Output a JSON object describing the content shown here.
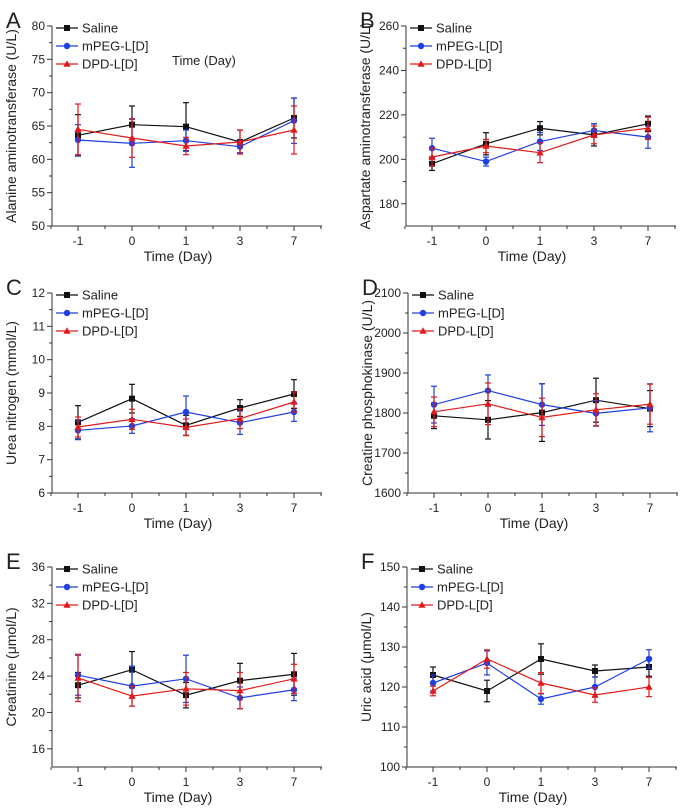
{
  "series_names": [
    "Saline",
    "mPEG-L[D]",
    "DPD-L[D]"
  ],
  "colors": {
    "Saline": "#111111",
    "mPEG-L[D]": "#1f3fe0",
    "DPD-L[D]": "#e01a1a"
  },
  "chart_data": [
    {
      "panel": "A",
      "type": "line",
      "xlabel": "Time (Day)",
      "ylabel": "Alanine aminotransferase (U/L)",
      "categories": [
        "-1",
        "0",
        "1",
        "3",
        "7"
      ],
      "ylim": [
        50,
        80
      ],
      "yticks": [
        50,
        55,
        60,
        65,
        70,
        75,
        80
      ],
      "annotation": "Time (Day)",
      "legend": "top-left",
      "series": [
        {
          "name": "Saline",
          "values": [
            63.6,
            65.2,
            64.9,
            62.6,
            66.2
          ],
          "errors": [
            3.1,
            2.8,
            3.6,
            1.8,
            3.0
          ]
        },
        {
          "name": "mPEG-L[D]",
          "values": [
            62.9,
            62.4,
            62.8,
            61.9,
            65.8
          ],
          "errors": [
            2.3,
            3.6,
            1.6,
            0.9,
            3.4
          ]
        },
        {
          "name": "DPD-L[D]",
          "values": [
            64.5,
            63.2,
            62.0,
            62.6,
            64.4
          ],
          "errors": [
            3.8,
            2.9,
            1.3,
            1.8,
            3.6
          ]
        }
      ]
    },
    {
      "panel": "B",
      "type": "line",
      "xlabel": "Time (Day)",
      "ylabel": "Aspartate aminotransferase (U/L)",
      "categories": [
        "-1",
        "0",
        "1",
        "3",
        "7"
      ],
      "ylim": [
        170,
        260
      ],
      "yticks": [
        180,
        200,
        220,
        240,
        260
      ],
      "legend": "top-left",
      "series": [
        {
          "name": "Saline",
          "values": [
            198,
            207,
            214,
            211,
            216
          ],
          "errors": [
            3,
            5,
            3,
            5,
            3.5
          ]
        },
        {
          "name": "mPEG-L[D]",
          "values": [
            205,
            199,
            208,
            213,
            210
          ],
          "errors": [
            4.5,
            2,
            4,
            3,
            5
          ]
        },
        {
          "name": "DPD-L[D]",
          "values": [
            201,
            206,
            203,
            211,
            214
          ],
          "errors": [
            4,
            3,
            4.5,
            4,
            5
          ]
        }
      ]
    },
    {
      "panel": "C",
      "type": "line",
      "xlabel": "Time (Day)",
      "ylabel": "Urea nitrogen (mmol/L)",
      "categories": [
        "-1",
        "0",
        "1",
        "3",
        "7"
      ],
      "ylim": [
        6,
        12
      ],
      "yticks": [
        6,
        7,
        8,
        9,
        10,
        11,
        12
      ],
      "legend": "top-left",
      "series": [
        {
          "name": "Saline",
          "values": [
            8.12,
            8.83,
            8.03,
            8.55,
            8.97
          ],
          "errors": [
            0.5,
            0.43,
            0.3,
            0.25,
            0.43
          ]
        },
        {
          "name": "mPEG-L[D]",
          "values": [
            7.88,
            8.01,
            8.43,
            8.11,
            8.43
          ],
          "errors": [
            0.28,
            0.22,
            0.48,
            0.35,
            0.28
          ]
        },
        {
          "name": "DPD-L[D]",
          "values": [
            7.98,
            8.21,
            7.97,
            8.23,
            8.73
          ],
          "errors": [
            0.3,
            0.3,
            0.25,
            0.3,
            0.3
          ]
        }
      ]
    },
    {
      "panel": "D",
      "type": "line",
      "xlabel": "Time (Day)",
      "ylabel": "Creatine phosphokinase (U/L)",
      "categories": [
        "-1",
        "0",
        "1",
        "3",
        "7"
      ],
      "ylim": [
        1600,
        2100
      ],
      "yticks": [
        1600,
        1700,
        1800,
        1900,
        2000,
        2100
      ],
      "legend": "top-left",
      "series": [
        {
          "name": "Saline",
          "values": [
            1793,
            1783,
            1801,
            1832,
            1811
          ],
          "errors": [
            32,
            48,
            72,
            55,
            45
          ]
        },
        {
          "name": "mPEG-L[D]",
          "values": [
            1821,
            1856,
            1821,
            1799,
            1813
          ],
          "errors": [
            46,
            39,
            52,
            32,
            60
          ]
        },
        {
          "name": "DPD-L[D]",
          "values": [
            1803,
            1823,
            1789,
            1808,
            1822
          ],
          "errors": [
            37,
            52,
            48,
            40,
            50
          ]
        }
      ]
    },
    {
      "panel": "E",
      "type": "line",
      "xlabel": "Time (Day)",
      "ylabel": "Creatinine (μmol/L)",
      "categories": [
        "-1",
        "0",
        "1",
        "3",
        "7"
      ],
      "ylim": [
        14,
        36
      ],
      "yticks": [
        16,
        20,
        24,
        28,
        32,
        36
      ],
      "legend": "top-left",
      "series": [
        {
          "name": "Saline",
          "values": [
            23.0,
            24.7,
            21.9,
            23.5,
            24.2
          ],
          "errors": [
            1.4,
            2.0,
            1.4,
            1.9,
            2.3
          ]
        },
        {
          "name": "mPEG-L[D]",
          "values": [
            24.1,
            22.9,
            23.7,
            21.6,
            22.5
          ],
          "errors": [
            2.2,
            2.2,
            2.6,
            1.2,
            1.2
          ]
        },
        {
          "name": "DPD-L[D]",
          "values": [
            23.8,
            21.8,
            22.6,
            22.4,
            23.7
          ],
          "errors": [
            2.6,
            1.1,
            1.8,
            2.0,
            1.6
          ]
        }
      ]
    },
    {
      "panel": "F",
      "type": "line",
      "xlabel": "Time (Day)",
      "ylabel": "Uric acid (μmol/L)",
      "categories": [
        "-1",
        "0",
        "1",
        "3",
        "7"
      ],
      "ylim": [
        100,
        150
      ],
      "yticks": [
        100,
        110,
        120,
        130,
        140,
        150
      ],
      "legend": "top-left",
      "series": [
        {
          "name": "Saline",
          "values": [
            123,
            119,
            127,
            124,
            125
          ],
          "errors": [
            2,
            2.7,
            3.8,
            1.5,
            2.3
          ]
        },
        {
          "name": "mPEG-L[D]",
          "values": [
            121,
            126,
            117,
            120,
            127
          ],
          "errors": [
            2,
            3,
            1.3,
            2.5,
            2.3
          ]
        },
        {
          "name": "DPD-L[D]",
          "values": [
            119,
            127,
            121,
            118,
            120
          ],
          "errors": [
            1.2,
            2.3,
            2.6,
            1.8,
            2.4
          ]
        }
      ]
    }
  ]
}
